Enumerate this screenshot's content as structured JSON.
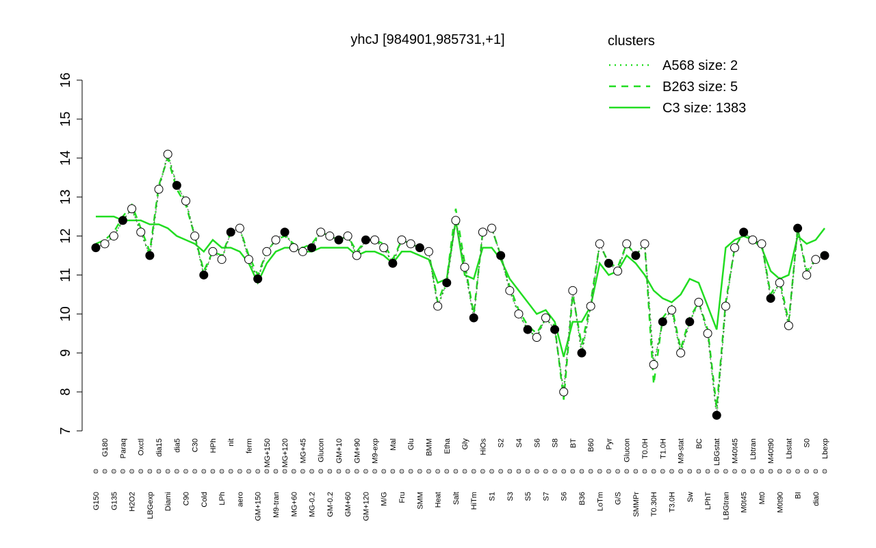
{
  "chart_data": {
    "type": "line",
    "title": "yhcJ [984901,985731,+1]",
    "legend_title": "clusters",
    "legend_color": "#22dd22",
    "ylim": [
      7,
      16
    ],
    "yticks": [
      7,
      8,
      9,
      10,
      11,
      12,
      13,
      14,
      15,
      16
    ],
    "categories": [
      "G150",
      "G180",
      "G135",
      "Paraq",
      "H2O2",
      "Oxctl",
      "LBGexp",
      "dia15",
      "Diami",
      "dia5",
      "C90",
      "C30",
      "Cold",
      "HPh",
      "LPh",
      "nit",
      "aero",
      "ferm",
      "GM+150",
      "MG+150",
      "M9-tran",
      "MG+120",
      "MG+60",
      "MG+45",
      "MG-0.2",
      "Glucon",
      "GM-0.2",
      "GM+10",
      "GM+60",
      "GM+90",
      "GM+120",
      "M9-exp",
      "M/G",
      "Mal",
      "Fru",
      "Glu",
      "SMM",
      "BMM",
      "Heat",
      "Etha",
      "Salt",
      "Gly",
      "HiTm",
      "HiOs",
      "S1",
      "S2",
      "S3",
      "S4",
      "S5",
      "S6",
      "S7",
      "S8",
      "S6",
      "BT",
      "B36",
      "B60",
      "LoTm",
      "Pyr",
      "G/S",
      "Glucon",
      "SMMPr",
      "T0.0H",
      "T0.30H",
      "T1.0H",
      "T3.0H",
      "M9-stat",
      "Sw",
      "BC",
      "LPhT",
      "LBGstat",
      "LBGtran",
      "M40t45",
      "M0t45",
      "Lbtran",
      "Mt0",
      "M40t90",
      "M0t90",
      "Lbstat",
      "BI",
      "S0",
      "dia0",
      "Lbexp"
    ],
    "values": [
      11.7,
      11.8,
      12.0,
      12.4,
      12.7,
      12.1,
      11.5,
      13.2,
      14.1,
      13.3,
      12.9,
      12.0,
      11.0,
      11.6,
      11.4,
      12.1,
      12.2,
      11.4,
      10.9,
      11.6,
      11.9,
      12.1,
      11.7,
      11.6,
      11.7,
      12.1,
      12.0,
      11.9,
      12.0,
      11.5,
      11.9,
      11.9,
      11.7,
      11.3,
      11.9,
      11.8,
      11.7,
      11.6,
      10.2,
      10.8,
      12.4,
      11.2,
      9.9,
      12.1,
      12.2,
      11.5,
      10.6,
      10.0,
      9.6,
      9.4,
      9.9,
      9.6,
      8.0,
      10.6,
      9.0,
      10.2,
      11.8,
      11.3,
      11.1,
      11.8,
      11.5,
      11.8,
      8.7,
      9.8,
      10.1,
      9.0,
      9.8,
      10.3,
      9.5,
      7.4,
      10.2,
      11.7,
      12.1,
      11.9,
      11.8,
      10.4,
      10.8,
      9.7,
      12.2,
      11.0,
      11.4,
      11.5
    ],
    "series": [
      {
        "name": "A568 size: 2",
        "dash": "2,6",
        "color": "#22dd22",
        "values": [
          11.7,
          11.8,
          12.0,
          12.4,
          12.7,
          12.1,
          11.5,
          13.2,
          14.1,
          13.3,
          12.9,
          12.0,
          11.0,
          11.6,
          11.4,
          12.1,
          12.2,
          11.4,
          10.9,
          11.6,
          11.9,
          12.1,
          11.7,
          11.6,
          11.7,
          12.1,
          12.0,
          11.9,
          12.0,
          11.5,
          11.9,
          11.9,
          11.7,
          11.3,
          11.9,
          11.8,
          11.7,
          11.6,
          10.2,
          10.8,
          12.4,
          11.2,
          9.9,
          12.1,
          12.2,
          11.5,
          10.6,
          10.0,
          9.6,
          9.4,
          9.9,
          9.6,
          8.0,
          10.6,
          9.0,
          10.2,
          11.8,
          11.3,
          11.1,
          11.8,
          11.5,
          11.8,
          8.7,
          9.8,
          10.1,
          9.0,
          9.8,
          10.3,
          9.5,
          7.4,
          10.2,
          11.7,
          12.1,
          11.9,
          11.8,
          10.4,
          10.8,
          9.7,
          12.2,
          11.0,
          11.4,
          11.5
        ]
      },
      {
        "name": "B263 size: 5",
        "dash": "10,8",
        "color": "#22dd22",
        "values": [
          11.8,
          11.9,
          12.1,
          12.5,
          12.8,
          12.2,
          11.6,
          13.3,
          14.0,
          13.2,
          12.8,
          12.0,
          11.1,
          11.6,
          11.5,
          12.1,
          12.2,
          11.5,
          11.0,
          11.6,
          11.9,
          12.0,
          11.8,
          11.7,
          11.8,
          12.1,
          12.0,
          11.9,
          12.0,
          11.6,
          11.9,
          11.9,
          11.8,
          11.4,
          11.9,
          11.8,
          11.7,
          11.6,
          10.3,
          10.9,
          12.7,
          11.3,
          10.0,
          12.1,
          12.2,
          11.5,
          10.7,
          10.1,
          9.7,
          9.5,
          9.9,
          9.7,
          7.8,
          10.5,
          9.2,
          10.3,
          11.8,
          11.3,
          11.2,
          11.8,
          11.5,
          11.8,
          8.2,
          9.9,
          10.2,
          9.1,
          9.9,
          10.3,
          9.6,
          7.6,
          10.3,
          11.7,
          12.1,
          11.9,
          11.8,
          10.5,
          10.9,
          9.8,
          12.2,
          11.1,
          11.4,
          11.6
        ]
      },
      {
        "name": "C3 size: 1383",
        "dash": "none",
        "color": "#22dd22",
        "values": [
          12.5,
          12.5,
          12.5,
          12.4,
          12.4,
          12.4,
          12.3,
          12.3,
          12.2,
          12.0,
          11.9,
          11.8,
          11.6,
          11.9,
          11.7,
          11.7,
          11.6,
          11.3,
          10.8,
          11.3,
          11.6,
          11.7,
          11.7,
          11.6,
          11.6,
          11.7,
          11.7,
          11.7,
          11.7,
          11.5,
          11.6,
          11.6,
          11.5,
          11.3,
          11.6,
          11.6,
          11.5,
          11.4,
          10.8,
          10.9,
          12.4,
          11.0,
          10.9,
          11.7,
          11.7,
          11.4,
          10.9,
          10.6,
          10.3,
          10.0,
          10.1,
          9.8,
          8.9,
          9.8,
          9.8,
          10.2,
          11.3,
          11.0,
          11.1,
          11.5,
          11.3,
          11.0,
          10.6,
          10.4,
          10.3,
          10.5,
          10.9,
          10.8,
          10.2,
          9.6,
          11.7,
          11.9,
          12.0,
          11.9,
          11.7,
          11.1,
          10.9,
          11.0,
          12.0,
          11.8,
          11.9,
          12.2
        ]
      }
    ]
  }
}
